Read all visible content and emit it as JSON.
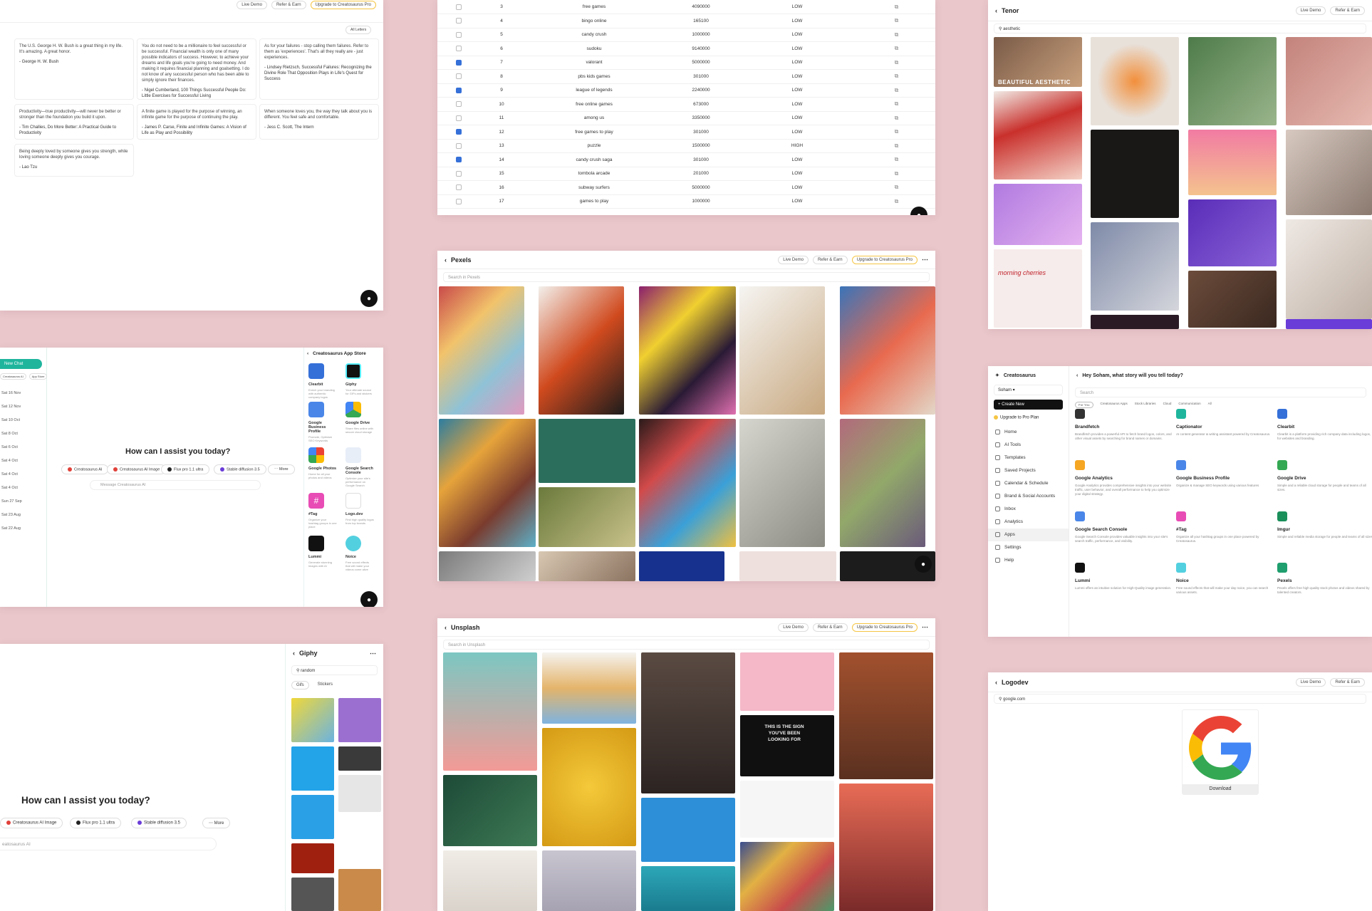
{
  "topbar": {
    "live_demo": "Live Demo",
    "refer": "Refer & Earn",
    "upgrade": "Upgrade to Creatosaurus Pro"
  },
  "quotes": {
    "filter": "All Letters",
    "items": [
      {
        "text": "The U.S. George H. W. Bush is a great thing in my life. It's amazing. A great honor.",
        "author": "- George H. W. Bush"
      },
      {
        "text": "You do not need to be a millionaire to feel successful or be successful. Financial wealth is only one of many possible indicators of success. However, to achieve your dreams and life goals you're going to need money. And making it requires financial planning and goalsetting. I do not know of any successful person who has been able to simply ignore their finances.",
        "author": "- Nigel Cumberland, 100 Things Successful People Do: Little Exercises for Successful Living"
      },
      {
        "text": "As for your failures - stop calling them failures. Refer to them as 'experiences'. That's all they really are - just experiences.",
        "author": "- Lindsey Rietzsch, Successful Failures: Recognizing the Divine Role That Opposition Plays in Life's Quest for Success"
      },
      {
        "text": "Productivity—true productivity—will never be better or stronger than the foundation you build it upon.",
        "author": "- Tim Challies, Do More Better: A Practical Guide to Productivity"
      },
      {
        "text": "A finite game is played for the purpose of winning, an infinite game for the purpose of continuing the play.",
        "author": "- James P. Carse, Finite and Infinite Games: A Vision of Life as Play and Possibility"
      },
      {
        "text": "When someone loves you, the way they talk about you is different. You feel safe and comfortable.",
        "author": "- Jess C. Scott, The Intern"
      },
      {
        "text": "Being deeply loved by someone gives you strength, while loving someone deeply gives you courage.",
        "author": "- Lao Tzu"
      }
    ]
  },
  "keywords": {
    "rows": [
      {
        "n": "3",
        "kw": "free games",
        "vol": "4090000",
        "comp": "LOW",
        "checked": false
      },
      {
        "n": "4",
        "kw": "bingo online",
        "vol": "165100",
        "comp": "LOW",
        "checked": false
      },
      {
        "n": "5",
        "kw": "candy crush",
        "vol": "1000000",
        "comp": "LOW",
        "checked": false
      },
      {
        "n": "6",
        "kw": "sudoku",
        "vol": "9140000",
        "comp": "LOW",
        "checked": false
      },
      {
        "n": "7",
        "kw": "valorant",
        "vol": "5000000",
        "comp": "LOW",
        "checked": true
      },
      {
        "n": "8",
        "kw": "pbs kids games",
        "vol": "301000",
        "comp": "LOW",
        "checked": false
      },
      {
        "n": "9",
        "kw": "league of legends",
        "vol": "2240000",
        "comp": "LOW",
        "checked": true
      },
      {
        "n": "10",
        "kw": "free online games",
        "vol": "673000",
        "comp": "LOW",
        "checked": false
      },
      {
        "n": "11",
        "kw": "among us",
        "vol": "3350000",
        "comp": "LOW",
        "checked": false
      },
      {
        "n": "12",
        "kw": "free games to play",
        "vol": "301000",
        "comp": "LOW",
        "checked": true
      },
      {
        "n": "13",
        "kw": "puzzle",
        "vol": "1500000",
        "comp": "HIGH",
        "checked": false
      },
      {
        "n": "14",
        "kw": "candy crush saga",
        "vol": "301000",
        "comp": "LOW",
        "checked": true
      },
      {
        "n": "15",
        "kw": "tombola arcade",
        "vol": "201000",
        "comp": "LOW",
        "checked": false
      },
      {
        "n": "16",
        "kw": "subway surfers",
        "vol": "5000000",
        "comp": "LOW",
        "checked": false
      },
      {
        "n": "17",
        "kw": "games to play",
        "vol": "1000000",
        "comp": "LOW",
        "checked": false
      }
    ]
  },
  "tenor": {
    "title": "Tenor",
    "search": "aesthetic",
    "live_demo": "Live Demo",
    "refer": "Refer & Earn",
    "caption": "BEAUTIFUL AESTHETIC",
    "cherry_text": "morning cherries"
  },
  "pexels": {
    "title": "Pexels",
    "search_placeholder": "Search in Pexels"
  },
  "unsplash": {
    "title": "Unsplash",
    "search_placeholder": "Search in Unsplash",
    "neon": "THIS IS THE SIGN YOU'VE BEEN LOOKING FOR"
  },
  "appstore_chat": {
    "new_chat": "New Chat",
    "tag1": "Creatosaurus AI",
    "tag2": "App Store",
    "history": [
      "Sat 16 Nov",
      "Sat 12 Nov",
      "Sat 10 Oct",
      "Sat 8 Oct",
      "Sat 6 Oct",
      "Sat 4 Oct",
      "Sat 4 Oct",
      "Sat 4 Oct",
      "Sun 27 Sep",
      "Sat 23 Aug",
      "Sat 22 Aug"
    ],
    "ask": "How can I assist you today?",
    "models": [
      "Creatosaurus AI",
      "Creatosaurus AI Image",
      "Flux pro 1.1 ultra",
      "Stable diffusion 3.5",
      "More"
    ],
    "placeholder": "Message Creatosaurus AI",
    "store_title": "Creatosaurus App Store",
    "apps": [
      {
        "name": "Clearbit",
        "desc": "Enrich your branding with authentic company logos"
      },
      {
        "name": "Giphy",
        "desc": "Your ultimate source for GIFs and stickers"
      },
      {
        "name": "Google Business Profile",
        "desc": "Promote, Optimize SEO Keywords"
      },
      {
        "name": "Google Drive",
        "desc": "Share files online with secure cloud storage"
      },
      {
        "name": "Google Photos",
        "desc": "Home for all your photos and videos"
      },
      {
        "name": "Google Search Console",
        "desc": "Optimize your site's performance on Google Search"
      },
      {
        "name": "#Tag",
        "desc": "Organize your hashtag groups in one place"
      },
      {
        "name": "Logo.dev",
        "desc": "Find high quality logos from top brands"
      },
      {
        "name": "Lummi",
        "desc": "Generate stunning images with AI"
      },
      {
        "name": "Noice",
        "desc": "Free sound effects that will make your videos come alive"
      }
    ]
  },
  "creatosaurus": {
    "brand": "Creatosaurus",
    "user": "Soham",
    "create_new": "Create New",
    "upgrade": "Upgrade to Pro Plan",
    "nav": [
      "Home",
      "AI Tools",
      "Templates",
      "Saved Projects",
      "Calendar & Schedule",
      "Brand & Social Accounts",
      "Inbox",
      "Analytics",
      "Apps",
      "Settings",
      "Help"
    ],
    "greeting": "Hey Soham, what story will you tell today?",
    "search_placeholder": "Search",
    "filters": [
      "For You",
      "Creatosaurus Apps",
      "Stock Libraries",
      "Cloud",
      "Communication",
      "All"
    ],
    "apps": [
      {
        "name": "Brandfetch",
        "desc": "Brandfetch provides a powerful API to fetch brand logos, colors, and other visual assets by searching for brand names or domains."
      },
      {
        "name": "Captionator",
        "desc": "AI content generator & writing assistant powered by Creatosaurus."
      },
      {
        "name": "Clearbit",
        "desc": "Clearbit is a platform providing rich company data including logos, for websites and branding."
      },
      {
        "name": "Google Analytics",
        "desc": "Google Analytics provides comprehensive insights into your website traffic, user behavior, and overall performance to help you optimize your digital strategy."
      },
      {
        "name": "Google Business Profile",
        "desc": "Organize & manage SEO keywords using various features"
      },
      {
        "name": "Google Drive",
        "desc": "Simple and a reliable cloud storage for people and teams of all sizes."
      },
      {
        "name": "Google Search Console",
        "desc": "Google Search Console provides valuable insights into your site's search traffic, performance, and visibility."
      },
      {
        "name": "#Tag",
        "desc": "Organize all your hashtag groups in one place powered by Creatosaurus."
      },
      {
        "name": "Imgur",
        "desc": "Simple and reliable media storage for people and teams of all sizes."
      },
      {
        "name": "Lummi",
        "desc": "Lummi offers an intuitive solution for High-Quality image generation."
      },
      {
        "name": "Noice",
        "desc": "Free sound effects that will make your day noice, you can search various assets."
      },
      {
        "name": "Pexels",
        "desc": "Pexels offers free high quality stock photos and videos shared by talented creators."
      }
    ]
  },
  "giphy_chat": {
    "ask": "How can I assist you today?",
    "models": [
      "Creatosaurus AI Image",
      "Flux pro 1.1 ultra",
      "Stable diffusion 3.5",
      "More"
    ],
    "placeholder": "eatosaurus AI",
    "title": "Giphy",
    "search": "random",
    "tabs": [
      "Gifs",
      "Stickers"
    ]
  },
  "logodev": {
    "title": "Logodev",
    "search": "google.com",
    "live_demo": "Live Demo",
    "refer": "Refer & Earn",
    "download": "Download"
  },
  "colors": {
    "accent_teal": "#1fb59d",
    "brand_blue": "#3570d8",
    "pro_yellow": "#f5c544",
    "background": "#e9c7cb"
  }
}
